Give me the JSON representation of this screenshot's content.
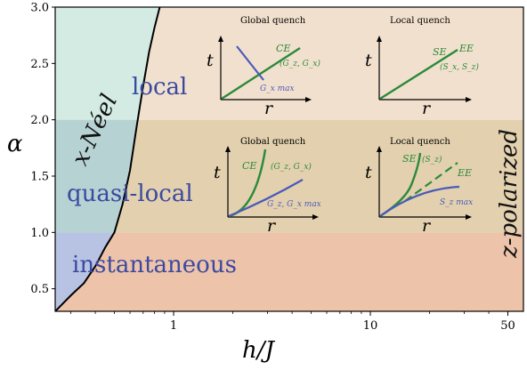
{
  "chart_data": {
    "type": "area",
    "xlabel": "h/J",
    "ylabel": "α",
    "x_scale": "log",
    "xlim": [
      0.25,
      60
    ],
    "ylim": [
      0.3,
      3.0
    ],
    "x_ticks": [
      {
        "value": 1,
        "label": "1"
      },
      {
        "value": 10,
        "label": "10"
      },
      {
        "value": 50,
        "label": "50"
      }
    ],
    "y_ticks": [
      {
        "value": 0.5,
        "label": "0.5"
      },
      {
        "value": 1.0,
        "label": "1.0"
      },
      {
        "value": 1.5,
        "label": "1.5"
      },
      {
        "value": 2.0,
        "label": "2.0"
      },
      {
        "value": 2.5,
        "label": "2.5"
      },
      {
        "value": 3.0,
        "label": "3.0"
      }
    ],
    "bands": [
      {
        "name": "instantaneous",
        "ymin": 0.3,
        "ymax": 1.0,
        "color_left": "#b8c3e4",
        "color_right": "#edc3aa"
      },
      {
        "name": "quasi-local",
        "ymin": 1.0,
        "ymax": 2.0,
        "color_left": "#b7d2d3",
        "color_right": "#e3d0ae"
      },
      {
        "name": "local",
        "ymin": 2.0,
        "ymax": 3.0,
        "color_left": "#d3ebe3",
        "color_right": "#f2e0ce"
      }
    ],
    "boundary": {
      "x": [
        0.25,
        0.3,
        0.35,
        0.4,
        0.45,
        0.5,
        0.55,
        0.6,
        0.65,
        0.7,
        0.75,
        0.8,
        0.85
      ],
      "y": [
        0.3,
        0.44,
        0.55,
        0.7,
        0.87,
        1.0,
        1.25,
        1.55,
        1.95,
        2.3,
        2.6,
        2.82,
        3.0
      ]
    },
    "region_labels": [
      "local",
      "quasi-local",
      "instantaneous"
    ],
    "phase_labels": [
      "x-Néel",
      "z-polarized"
    ],
    "insets": [
      {
        "title": "Global quench",
        "xlabel": "r",
        "ylabel": "t",
        "labels": [
          "CE",
          "(G_z, G_x)",
          "G_x  max"
        ]
      },
      {
        "title": "Local quench",
        "xlabel": "r",
        "ylabel": "t",
        "labels": [
          "SE",
          "EE",
          "(S_x, S_z)"
        ]
      },
      {
        "title": "Global quench",
        "xlabel": "r",
        "ylabel": "t",
        "labels": [
          "CE",
          "(G_z, G_x)",
          "G_z, G_x max"
        ]
      },
      {
        "title": "Local quench",
        "xlabel": "r",
        "ylabel": "t",
        "labels": [
          "SE",
          "(S_z)",
          "EE",
          "S_z max"
        ]
      }
    ],
    "colors": {
      "boundary": "#000000",
      "green": "#2a8a3a",
      "blue": "#4a5ab8",
      "region_text": "#3a4aa0"
    }
  }
}
